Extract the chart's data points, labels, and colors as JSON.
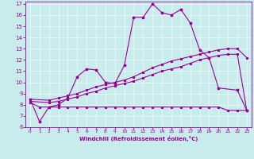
{
  "xlabel": "Windchill (Refroidissement éolien,°C)",
  "bg_color": "#c8ecec",
  "line_color": "#990099",
  "xlim": [
    -0.5,
    23.5
  ],
  "ylim": [
    6,
    17.2
  ],
  "xticks": [
    0,
    1,
    2,
    3,
    4,
    5,
    6,
    7,
    8,
    9,
    10,
    11,
    12,
    13,
    14,
    15,
    16,
    17,
    18,
    19,
    20,
    21,
    22,
    23
  ],
  "yticks": [
    6,
    7,
    8,
    9,
    10,
    11,
    12,
    13,
    14,
    15,
    16,
    17
  ],
  "line_main_x": [
    0,
    1,
    2,
    3,
    4,
    5,
    6,
    7,
    8,
    9,
    10,
    11,
    12,
    13,
    14,
    15,
    16,
    17,
    18,
    19,
    20,
    22,
    23
  ],
  "line_main_y": [
    8.5,
    6.5,
    7.8,
    8.0,
    8.6,
    10.5,
    11.2,
    11.1,
    10.0,
    9.9,
    11.5,
    15.8,
    15.8,
    17.0,
    16.2,
    16.0,
    16.5,
    15.3,
    12.9,
    12.2,
    9.5,
    9.3,
    7.5
  ],
  "line_flat_x": [
    0,
    1,
    2,
    3,
    4,
    5,
    6,
    7,
    8,
    9,
    10,
    11,
    12,
    13,
    14,
    15,
    16,
    17,
    18,
    19,
    20,
    21,
    22,
    23
  ],
  "line_flat_y": [
    8.2,
    7.8,
    7.8,
    7.8,
    7.8,
    7.8,
    7.8,
    7.8,
    7.8,
    7.8,
    7.8,
    7.8,
    7.8,
    7.8,
    7.8,
    7.8,
    7.8,
    7.8,
    7.8,
    7.8,
    7.8,
    7.5,
    7.5,
    7.5
  ],
  "line_upper_x": [
    0,
    2,
    3,
    4,
    5,
    6,
    7,
    8,
    9,
    10,
    11,
    12,
    13,
    14,
    15,
    16,
    17,
    18,
    19,
    20,
    21,
    22,
    23
  ],
  "line_upper_y": [
    8.5,
    8.4,
    8.6,
    8.8,
    9.0,
    9.3,
    9.6,
    9.8,
    10.0,
    10.2,
    10.5,
    10.9,
    11.3,
    11.6,
    11.9,
    12.1,
    12.3,
    12.5,
    12.7,
    12.9,
    13.0,
    13.0,
    12.2
  ],
  "line_lower_x": [
    0,
    2,
    3,
    4,
    5,
    6,
    7,
    8,
    9,
    10,
    11,
    12,
    13,
    14,
    15,
    16,
    17,
    18,
    19,
    20,
    21,
    22,
    23
  ],
  "line_lower_y": [
    8.3,
    8.2,
    8.3,
    8.5,
    8.7,
    9.0,
    9.2,
    9.5,
    9.7,
    9.9,
    10.1,
    10.4,
    10.7,
    11.0,
    11.2,
    11.4,
    11.7,
    12.0,
    12.2,
    12.4,
    12.5,
    12.5,
    7.5
  ]
}
